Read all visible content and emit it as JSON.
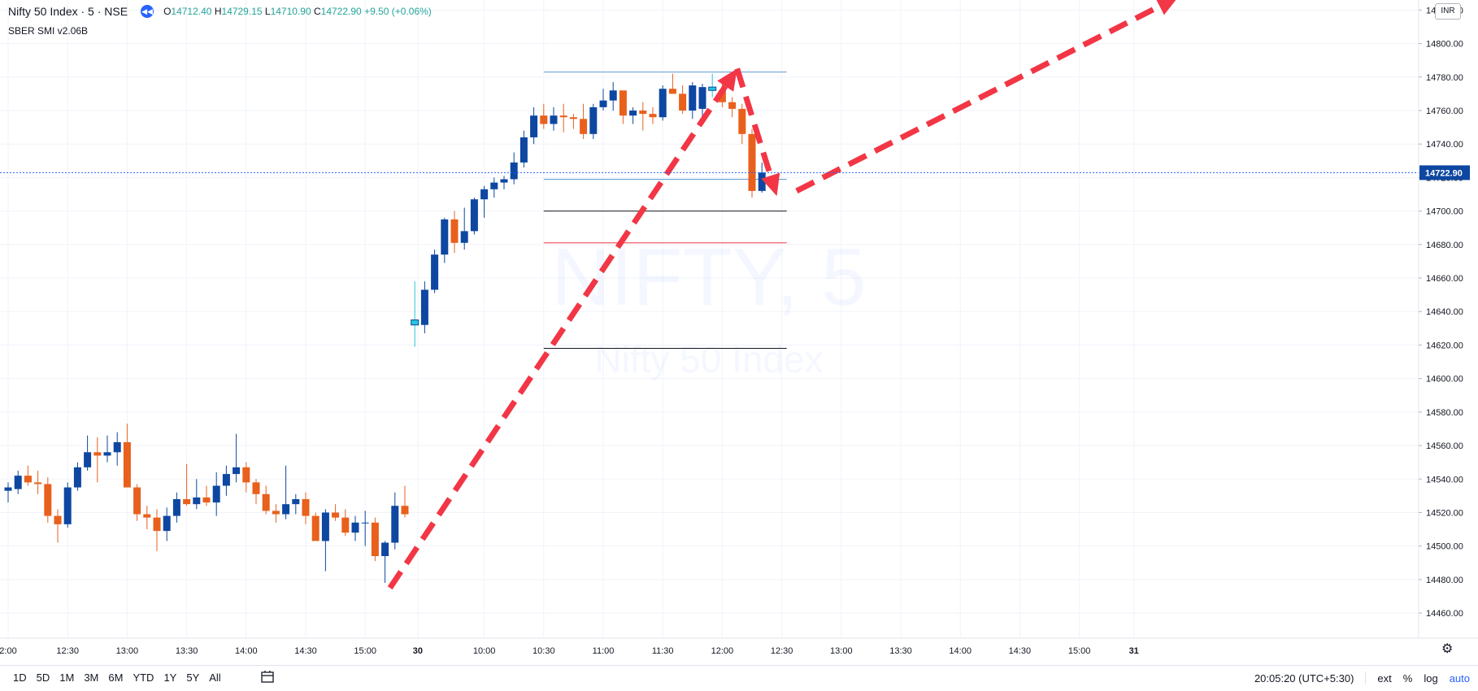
{
  "header": {
    "symbol": "Nifty 50 Index · 5 · NSE",
    "ohlc": {
      "open_label": "O",
      "open": "14712.40",
      "high_label": "H",
      "high": "14729.15",
      "low_label": "L",
      "low": "14710.90",
      "close_label": "C",
      "close": "14722.90",
      "change": "+9.50 (+0.06%)"
    },
    "indicator": "SBER SMI v2.06B"
  },
  "watermark": {
    "line1": "NIFTY, 5",
    "line2": "Nifty 50 Index"
  },
  "price_scale": {
    "currency": "INR",
    "last_price_label": "14722.90"
  },
  "time_scale": {
    "labels": [
      "2:00",
      "12:30",
      "13:00",
      "13:30",
      "14:00",
      "14:30",
      "15:00",
      "30",
      "10:00",
      "10:30",
      "11:00",
      "11:30",
      "12:00",
      "12:30",
      "13:00",
      "13:30",
      "14:00",
      "14:30",
      "15:00",
      "31"
    ]
  },
  "bottom_bar": {
    "ranges": [
      "1D",
      "5D",
      "1M",
      "3M",
      "6M",
      "YTD",
      "1Y",
      "5Y",
      "All"
    ],
    "clock": "20:05:20 (UTC+5:30)",
    "ext": "ext",
    "percent": "%",
    "log": "log",
    "auto": "auto"
  },
  "colors": {
    "up": "#0d47a1",
    "down": "#e8601c",
    "highlight": "#26c6da",
    "arrow": "#f23645",
    "grid": "#f0f3fa",
    "price_line": "#2962ff"
  },
  "icons": [
    "chevron-back-icon",
    "compare-icon",
    "gear-icon"
  ],
  "chart_data": {
    "type": "candlestick",
    "symbol": "NIFTY, 5",
    "ylim": [
      14445,
      14826
    ],
    "y_ticks": [
      14460,
      14480,
      14500,
      14520,
      14540,
      14560,
      14580,
      14600,
      14620,
      14640,
      14660,
      14680,
      14700,
      14720,
      14740,
      14760,
      14780,
      14800,
      14820
    ],
    "last_price": 14722.9,
    "candles": [
      [
        14533,
        14538,
        14526,
        14535
      ],
      [
        14534,
        14545,
        14531,
        14542
      ],
      [
        14542,
        14548,
        14536,
        14538
      ],
      [
        14538,
        14545,
        14531,
        14537
      ],
      [
        14537,
        14541,
        14514,
        14518
      ],
      [
        14518,
        14522,
        14502,
        14513
      ],
      [
        14513,
        14538,
        14511,
        14535
      ],
      [
        14535,
        14550,
        14533,
        14547
      ],
      [
        14547,
        14566,
        14545,
        14556
      ],
      [
        14556,
        14565,
        14538,
        14554
      ],
      [
        14554,
        14566,
        14550,
        14556
      ],
      [
        14556,
        14568,
        14548,
        14562
      ],
      [
        14562,
        14573,
        14535,
        14535
      ],
      [
        14535,
        14537,
        14515,
        14519
      ],
      [
        14519,
        14524,
        14510,
        14517
      ],
      [
        14517,
        14522,
        14497,
        14509
      ],
      [
        14509,
        14523,
        14503,
        14518
      ],
      [
        14518,
        14532,
        14514,
        14528
      ],
      [
        14528,
        14549,
        14524,
        14525
      ],
      [
        14525,
        14540,
        14522,
        14529
      ],
      [
        14529,
        14536,
        14524,
        14526
      ],
      [
        14526,
        14544,
        14518,
        14536
      ],
      [
        14536,
        14548,
        14530,
        14543
      ],
      [
        14543,
        14567,
        14538,
        14547
      ],
      [
        14547,
        14550,
        14532,
        14538
      ],
      [
        14538,
        14540,
        14525,
        14531
      ],
      [
        14531,
        14536,
        14519,
        14521
      ],
      [
        14521,
        14525,
        14514,
        14519
      ],
      [
        14519,
        14548,
        14516,
        14525
      ],
      [
        14525,
        14531,
        14519,
        14528
      ],
      [
        14528,
        14532,
        14513,
        14518
      ],
      [
        14518,
        14520,
        14505,
        14503
      ],
      [
        14503,
        14522,
        14485,
        14520
      ],
      [
        14520,
        14525,
        14515,
        14517
      ],
      [
        14517,
        14522,
        14506,
        14508
      ],
      [
        14508,
        14518,
        14503,
        14514
      ],
      [
        14514,
        14521,
        14500,
        14514
      ],
      [
        14514,
        14517,
        14491,
        14494
      ],
      [
        14494,
        14503,
        14478,
        14502
      ],
      [
        14502,
        14532,
        14498,
        14524
      ],
      [
        14524,
        14536,
        14517,
        14519
      ],
      [
        14635,
        14658,
        14619,
        14632
      ],
      [
        14632,
        14658,
        14627,
        14653
      ],
      [
        14653,
        14677,
        14651,
        14674
      ],
      [
        14674,
        14696,
        14669,
        14695
      ],
      [
        14695,
        14700,
        14675,
        14681
      ],
      [
        14681,
        14702,
        14677,
        14688
      ],
      [
        14688,
        14708,
        14686,
        14707
      ],
      [
        14707,
        14715,
        14696,
        14713
      ],
      [
        14713,
        14720,
        14708,
        14717
      ],
      [
        14717,
        14721,
        14713,
        14719
      ],
      [
        14719,
        14735,
        14716,
        14729
      ],
      [
        14729,
        14748,
        14726,
        14744
      ],
      [
        14744,
        14762,
        14740,
        14757
      ],
      [
        14757,
        14764,
        14749,
        14752
      ],
      [
        14752,
        14762,
        14748,
        14757
      ],
      [
        14757,
        14764,
        14747,
        14756
      ],
      [
        14756,
        14758,
        14749,
        14755
      ],
      [
        14755,
        14764,
        14743,
        14746
      ],
      [
        14746,
        14764,
        14743,
        14762
      ],
      [
        14762,
        14773,
        14760,
        14766
      ],
      [
        14766,
        14777,
        14760,
        14772
      ],
      [
        14772,
        14770,
        14752,
        14757
      ],
      [
        14757,
        14762,
        14752,
        14760
      ],
      [
        14760,
        14765,
        14748,
        14758
      ],
      [
        14758,
        14762,
        14752,
        14756
      ],
      [
        14756,
        14775,
        14754,
        14773
      ],
      [
        14773,
        14782,
        14770,
        14770
      ],
      [
        14770,
        14775,
        14758,
        14760
      ],
      [
        14760,
        14777,
        14755,
        14775
      ],
      [
        14761,
        14776,
        14752,
        14774
      ],
      [
        14774,
        14782,
        14768,
        14772
      ],
      [
        14772,
        14778,
        14762,
        14765
      ],
      [
        14765,
        14768,
        14756,
        14761
      ],
      [
        14761,
        14764,
        14740,
        14746
      ],
      [
        14746,
        14749,
        14708,
        14712
      ],
      [
        14712,
        14729,
        14711,
        14723
      ]
    ],
    "highlighted_candles": [
      41,
      71
    ],
    "horizontal_levels": [
      {
        "price": 14783,
        "color": "#5b9bd5"
      },
      {
        "price": 14719,
        "color": "#5b9bd5"
      },
      {
        "price": 14700,
        "color": "#131722"
      },
      {
        "price": 14681,
        "color": "#f23645"
      },
      {
        "price": 14618,
        "color": "#131722"
      }
    ],
    "annotations": [
      {
        "type": "dashed-arrow",
        "from": [
          38.5,
          14475
        ],
        "to": [
          73.5,
          14785
        ]
      },
      {
        "type": "dashed-arrow",
        "from": [
          73.5,
          14785
        ],
        "to": [
          77.5,
          14709
        ]
      },
      {
        "type": "dashed-arrow",
        "from": [
          79.5,
          14712
        ],
        "to": [
          118,
          14828
        ]
      }
    ]
  }
}
